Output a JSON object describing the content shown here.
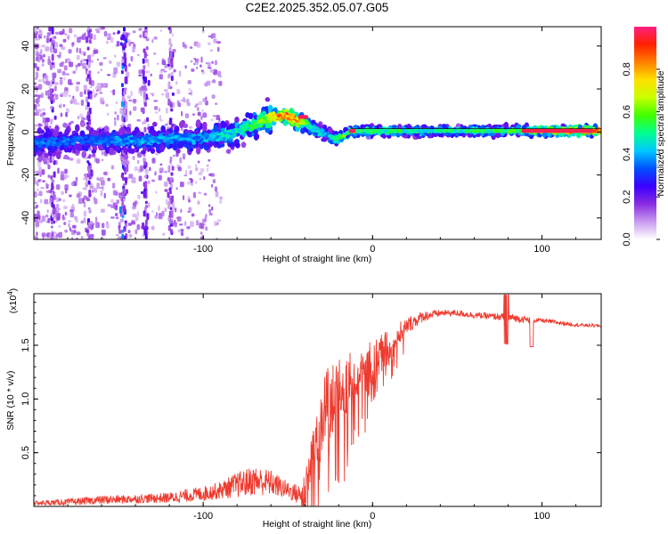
{
  "chart_data": [
    {
      "type": "heatmap",
      "title": "C2E2.2025.352.05.07.G05",
      "xlabel": "Height of straight line (km)",
      "ylabel": "Frequency (Hz)",
      "xlim": [
        -200,
        135
      ],
      "ylim": [
        -50,
        49
      ],
      "xticks": [
        -100,
        0,
        100
      ],
      "yticks": [
        -40,
        -20,
        0,
        20,
        40
      ],
      "colorbar": {
        "label": "Normalized spectral amplitude",
        "range": [
          0.0,
          1.0
        ],
        "ticks": [
          0.0,
          0.2,
          0.4,
          0.6,
          0.8
        ],
        "tick_labels": [
          "0.0",
          "0.2",
          "0.4",
          "0.6",
          "0.8"
        ],
        "colormap": [
          "#ffffff",
          "#c89bf0",
          "#8a2be2",
          "#3a00ff",
          "#0050ff",
          "#00c8ff",
          "#00ff90",
          "#40ff00",
          "#c8ff00",
          "#ffe000",
          "#ff8000",
          "#ff2000",
          "#ff2080"
        ]
      },
      "ridge": {
        "x": [
          -200,
          -170,
          -140,
          -120,
          -100,
          -85,
          -70,
          -60,
          -52,
          -46,
          -40,
          -34,
          -28,
          -22,
          -18,
          -14,
          -10,
          0,
          40,
          80,
          135
        ],
        "frequency": [
          -5,
          -4,
          -4,
          -3,
          -3,
          -1,
          3,
          7,
          8,
          6,
          4,
          1,
          -1,
          -3,
          -2,
          0,
          0.5,
          0.5,
          0.5,
          0.5,
          0.5
        ],
        "amplitude": [
          0.35,
          0.35,
          0.4,
          0.4,
          0.4,
          0.45,
          0.55,
          0.7,
          0.9,
          0.9,
          0.6,
          0.45,
          0.4,
          0.5,
          0.6,
          0.55,
          0.55,
          0.55,
          0.5,
          0.55,
          0.95
        ]
      },
      "peak_segments": [
        {
          "x_start": -44,
          "x_end": -38,
          "frequency": 7
        },
        {
          "x_start": -14,
          "x_end": -10,
          "frequency": 0.5
        },
        {
          "x_start": 88,
          "x_end": 130,
          "frequency": 0.5
        }
      ]
    },
    {
      "type": "line",
      "xlabel": "Height of straight line (km)",
      "ylabel": "SNR (10 * v/v)",
      "y_multiplier": "(x10",
      "y_multiplier_exp": "4",
      "y_multiplier_close": ")",
      "xlim": [
        -200,
        135
      ],
      "ylim": [
        0,
        1.98
      ],
      "xticks": [
        -100,
        0,
        100
      ],
      "yticks": [
        0.5,
        1.0,
        1.5
      ],
      "ytick_labels": [
        "0.5",
        "1.0",
        "1.5"
      ],
      "line_color": "#ee3b2f",
      "series": [
        {
          "name": "SNR",
          "x": [
            -200,
            -180,
            -160,
            -140,
            -120,
            -100,
            -90,
            -80,
            -70,
            -60,
            -50,
            -42,
            -36,
            -30,
            -24,
            -18,
            -10,
            -4,
            0,
            10,
            20,
            30,
            40,
            50,
            60,
            70,
            80,
            90,
            100,
            110,
            120,
            135
          ],
          "y": [
            0.03,
            0.04,
            0.06,
            0.07,
            0.08,
            0.12,
            0.15,
            0.2,
            0.24,
            0.22,
            0.15,
            0.1,
            0.45,
            0.85,
            1.0,
            1.1,
            1.2,
            1.28,
            1.35,
            1.5,
            1.68,
            1.77,
            1.8,
            1.8,
            1.78,
            1.77,
            1.76,
            1.74,
            1.73,
            1.71,
            1.69,
            1.68
          ],
          "noise": [
            0.02,
            0.03,
            0.04,
            0.04,
            0.05,
            0.07,
            0.08,
            0.12,
            0.14,
            0.12,
            0.08,
            0.1,
            0.3,
            0.35,
            0.35,
            0.3,
            0.25,
            0.22,
            0.2,
            0.15,
            0.08,
            0.05,
            0.03,
            0.03,
            0.03,
            0.03,
            0.04,
            0.03,
            0.02,
            0.02,
            0.015,
            0.015
          ]
        }
      ]
    }
  ]
}
